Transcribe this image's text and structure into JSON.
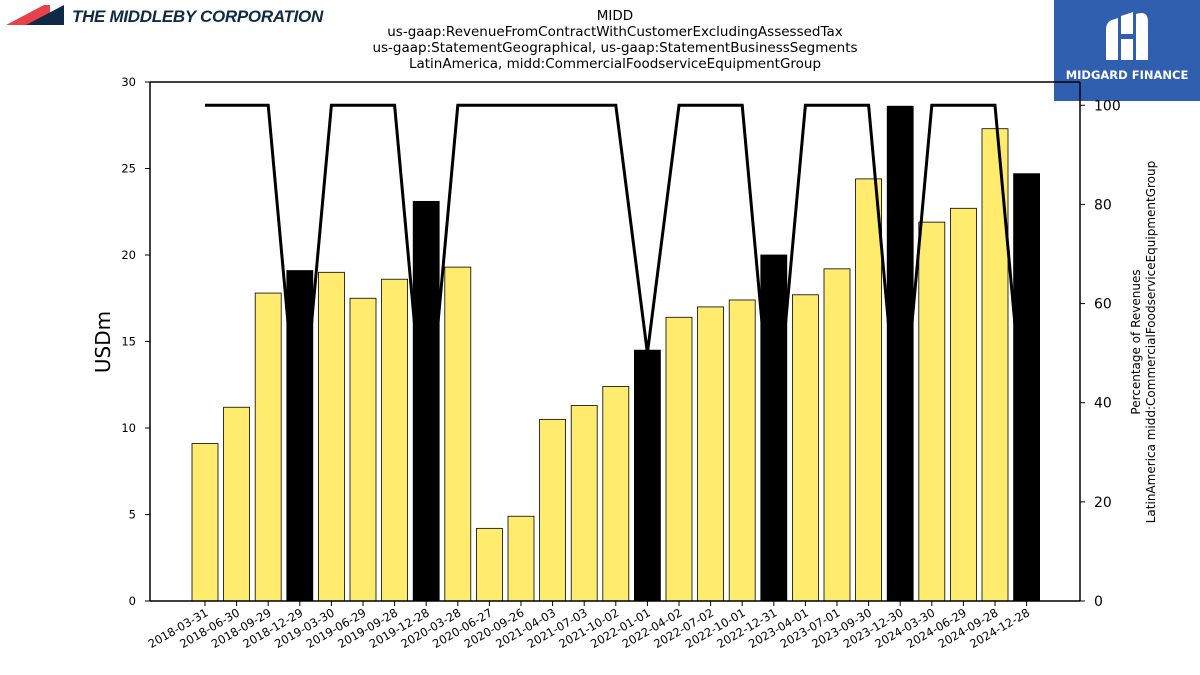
{
  "logos": {
    "left": {
      "text": "THE MIDDLEBY CORPORATION",
      "colors": [
        "#e8414a",
        "#0f2a47"
      ]
    },
    "right": {
      "text": "MIDGARD FINANCE",
      "background": "#2f5fae",
      "icon": "midgard-monogram-icon"
    }
  },
  "chart_data": {
    "type": "bar",
    "title_lines": [
      "MIDD",
      "us-gaap:RevenueFromContractWithCustomerExcludingAssessedTax",
      "us-gaap:StatementGeographical, us-gaap:StatementBusinessSegments",
      "LatinAmerica, midd:CommercialFoodserviceEquipmentGroup"
    ],
    "ylabel": "USDm",
    "y2label_lines": [
      "Percentage of Revenues",
      "LatinAmerica midd:CommercialFoodserviceEquipmentGroup"
    ],
    "ylim": [
      0,
      30
    ],
    "y2lim": [
      0,
      104.7
    ],
    "yticks": [
      0,
      5,
      10,
      15,
      20,
      25,
      30
    ],
    "y2ticks": [
      0,
      20,
      40,
      60,
      80,
      100
    ],
    "grid": false,
    "colors": {
      "bar": "#ffeb6e",
      "bar_annual": "#000000",
      "line": "#000000"
    },
    "categories": [
      "2018-03-31",
      "2018-06-30",
      "2018-09-29",
      "2018-12-29",
      "2019-03-30",
      "2019-06-29",
      "2019-09-28",
      "2019-12-28",
      "2020-03-28",
      "2020-06-27",
      "2020-09-26",
      "2021-04-03",
      "2021-07-03",
      "2021-10-02",
      "2022-01-01",
      "2022-04-02",
      "2022-07-02",
      "2022-10-01",
      "2022-12-31",
      "2023-04-01",
      "2023-07-01",
      "2023-09-30",
      "2023-12-30",
      "2024-03-30",
      "2024-06-29",
      "2024-09-28",
      "2024-12-28"
    ],
    "values": [
      9.1,
      11.2,
      17.8,
      19.1,
      19.0,
      17.5,
      18.6,
      23.1,
      19.3,
      4.2,
      4.9,
      10.5,
      11.3,
      12.4,
      14.5,
      16.4,
      17.0,
      17.4,
      20.0,
      17.7,
      19.2,
      24.4,
      28.6,
      21.9,
      22.7,
      27.3,
      24.7
    ],
    "annual_flags": [
      false,
      false,
      false,
      true,
      false,
      false,
      false,
      true,
      false,
      false,
      false,
      false,
      false,
      false,
      true,
      false,
      false,
      false,
      true,
      false,
      false,
      false,
      true,
      false,
      false,
      false,
      true
    ],
    "pct_line": [
      100,
      100,
      100,
      30,
      100,
      100,
      100,
      30,
      100,
      100,
      100,
      100,
      100,
      100,
      50,
      100,
      100,
      100,
      30,
      100,
      100,
      100,
      30,
      100,
      100,
      100,
      30
    ]
  }
}
